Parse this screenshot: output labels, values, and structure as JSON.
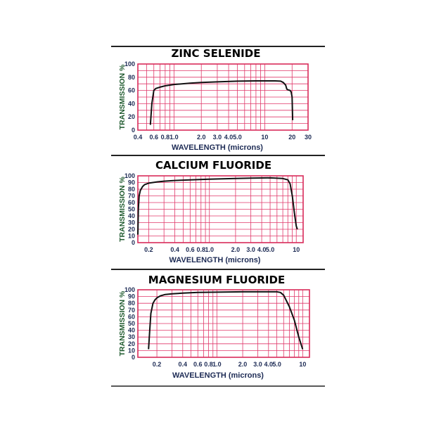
{
  "colors": {
    "grid": "#e0386a",
    "frame": "#d92b5a",
    "curve": "#111111",
    "separator": "#222222",
    "xlabel": "#1c2a54",
    "ylabel": "#1f5a2e"
  },
  "chart_data": [
    {
      "type": "line",
      "title": "ZINC SELENIDE",
      "xlabel": "WAVELENGTH (microns)",
      "ylabel": "TRANSMISSION %",
      "xscale": "log",
      "xlim": [
        0.4,
        30
      ],
      "ylim": [
        0,
        100
      ],
      "xticks": [
        0.4,
        0.6,
        0.8,
        1.0,
        2.0,
        3.0,
        4.0,
        5.0,
        10,
        20,
        30
      ],
      "xtick_labels": [
        "0.4",
        "0.6",
        "0.8",
        "1.0",
        "2.0",
        "3.0",
        "4.0",
        "5.0",
        "10",
        "20",
        "30"
      ],
      "yticks": [
        0,
        20,
        40,
        60,
        80,
        100
      ],
      "ytick_labels": [
        "0",
        "20",
        "40",
        "60",
        "80",
        "100"
      ],
      "grid": true,
      "series": [
        {
          "x": [
            0.55,
            0.57,
            0.6,
            0.63,
            0.7,
            0.8,
            1.0,
            1.5,
            2.0,
            3.0,
            5.0,
            8.0,
            10,
            13,
            15,
            16,
            17,
            17.5,
            18,
            19,
            19.5,
            20,
            20.3
          ],
          "y": [
            8,
            40,
            60,
            63,
            65,
            67,
            69,
            71,
            72,
            73,
            74,
            74.5,
            74.5,
            74.5,
            74,
            72,
            68,
            62,
            61,
            60,
            58,
            50,
            15
          ]
        }
      ]
    },
    {
      "type": "line",
      "title": "CALCIUM FLUORIDE",
      "xlabel": "WAVELENGTH (microns)",
      "ylabel": "TRANSMISSION %",
      "xscale": "log",
      "xlim": [
        0.15,
        12
      ],
      "ylim": [
        0,
        100
      ],
      "xticks": [
        0.2,
        0.4,
        0.6,
        0.8,
        1.0,
        2.0,
        3.0,
        4.0,
        5.0,
        10
      ],
      "xtick_labels": [
        "0.2",
        "0.4",
        "0.6",
        "0.8",
        "1.0",
        "2.0",
        "3.0",
        "4.0",
        "5.0",
        "10"
      ],
      "yticks": [
        0,
        10,
        20,
        30,
        40,
        50,
        60,
        70,
        80,
        90,
        100
      ],
      "ytick_labels": [
        "0",
        "10",
        "20",
        "30",
        "40",
        "50",
        "60",
        "70",
        "80",
        "90",
        "100"
      ],
      "grid": true,
      "series": [
        {
          "x": [
            0.15,
            0.152,
            0.155,
            0.16,
            0.17,
            0.18,
            0.2,
            0.25,
            0.3,
            0.4,
            0.6,
            1.0,
            2.0,
            3.0,
            5.0,
            7.0,
            8.0,
            8.5,
            9.0,
            9.5,
            10,
            10.3
          ],
          "y": [
            12,
            50,
            70,
            78,
            84,
            87,
            89,
            91,
            92,
            93,
            94,
            95,
            96,
            96.5,
            97,
            96,
            94,
            88,
            70,
            45,
            25,
            20
          ]
        }
      ]
    },
    {
      "type": "line",
      "title": "MAGNESIUM FLUORIDE",
      "xlabel": "WAVELENGTH (microns)",
      "ylabel": "TRANSMISSION %",
      "xscale": "log",
      "xlim": [
        0.12,
        12
      ],
      "ylim": [
        0,
        100
      ],
      "xticks": [
        0.2,
        0.4,
        0.6,
        0.8,
        1.0,
        2.0,
        3.0,
        4.0,
        5.0,
        10
      ],
      "xtick_labels": [
        "0.2",
        "0.4",
        "0.6",
        "0.8",
        "1.0",
        "2.0",
        "3.0",
        "4.0",
        "5.0",
        "10"
      ],
      "yticks": [
        0,
        10,
        20,
        30,
        40,
        50,
        60,
        70,
        80,
        90,
        100
      ],
      "ytick_labels": [
        "0",
        "10",
        "20",
        "30",
        "40",
        "50",
        "60",
        "70",
        "80",
        "90",
        "100"
      ],
      "grid": true,
      "series": [
        {
          "x": [
            0.16,
            0.165,
            0.17,
            0.18,
            0.19,
            0.2,
            0.22,
            0.25,
            0.3,
            0.4,
            0.6,
            1.0,
            2.0,
            3.0,
            5.0,
            5.5,
            6.0,
            7.0,
            8.0,
            9.0,
            10
          ],
          "y": [
            12,
            40,
            65,
            80,
            85,
            88,
            91,
            93,
            94,
            95,
            96,
            96.5,
            97,
            97,
            97,
            96,
            92,
            75,
            55,
            30,
            12
          ]
        }
      ]
    }
  ]
}
